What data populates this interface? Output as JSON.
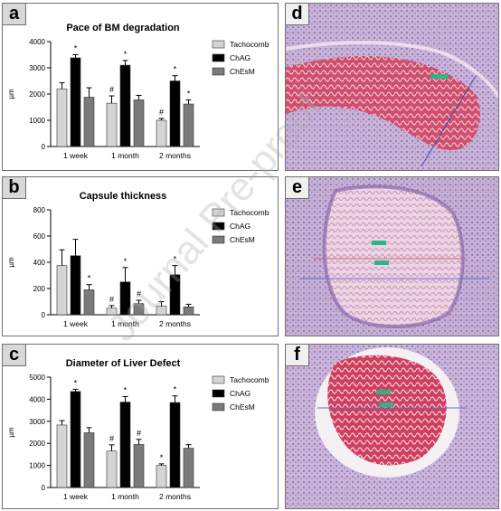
{
  "panels": {
    "a": {
      "label": "a"
    },
    "b": {
      "label": "b"
    },
    "c": {
      "label": "c"
    },
    "d": {
      "label": "d"
    },
    "e": {
      "label": "e"
    },
    "f": {
      "label": "f"
    }
  },
  "watermark": "Journal Pre-proof",
  "colors": {
    "tachocomb": "#d4d4d4",
    "chag": "#000000",
    "chesm": "#7a7a7a"
  },
  "chart_data": [
    {
      "type": "bar",
      "title": "Pace of BM degradation",
      "ylabel": "µm",
      "ylim": [
        0,
        4000
      ],
      "yticks": [
        "0",
        "1000",
        "2000",
        "3000",
        "4000"
      ],
      "categories": [
        "1 week",
        "1 month",
        "2 months"
      ],
      "legend": "right",
      "series": [
        {
          "name": "Tachocomb",
          "values": [
            2200,
            1650,
            1000
          ],
          "errors": [
            230,
            280,
            70
          ],
          "marks": [
            "",
            "#",
            "#"
          ]
        },
        {
          "name": "ChAG",
          "values": [
            3380,
            3100,
            2500
          ],
          "errors": [
            120,
            180,
            200
          ],
          "marks": [
            "*",
            "*",
            "*"
          ]
        },
        {
          "name": "ChEsM",
          "values": [
            1880,
            1780,
            1620
          ],
          "errors": [
            360,
            170,
            160
          ],
          "marks": [
            "",
            "",
            "*"
          ]
        }
      ]
    },
    {
      "type": "bar",
      "title": "Capsule thickness",
      "ylabel": "µm",
      "ylim": [
        0,
        800
      ],
      "yticks": [
        "0",
        "200",
        "400",
        "600",
        "800"
      ],
      "categories": [
        "1 week",
        "1 month",
        "2 months"
      ],
      "legend": "right",
      "series": [
        {
          "name": "Tachocomb",
          "values": [
            375,
            50,
            65
          ],
          "errors": [
            120,
            20,
            35
          ],
          "marks": [
            "",
            "#",
            ""
          ]
        },
        {
          "name": "ChAG",
          "values": [
            450,
            250,
            305
          ],
          "errors": [
            125,
            110,
            70
          ],
          "marks": [
            "",
            "*",
            "*"
          ]
        },
        {
          "name": "ChEsM",
          "values": [
            190,
            85,
            60
          ],
          "errors": [
            40,
            25,
            20
          ],
          "marks": [
            "*",
            "#",
            ""
          ]
        }
      ]
    },
    {
      "type": "bar",
      "title": "Diameter of Liver Defect",
      "ylabel": "µm",
      "ylim": [
        0,
        5000
      ],
      "yticks": [
        "0",
        "1000",
        "2000",
        "3000",
        "4000",
        "5000"
      ],
      "categories": [
        "1 week",
        "1 month",
        "2 months"
      ],
      "legend": "right",
      "series": [
        {
          "name": "Tachocomb",
          "values": [
            2830,
            1650,
            1000
          ],
          "errors": [
            200,
            280,
            70
          ],
          "marks": [
            "",
            "#",
            "*"
          ]
        },
        {
          "name": "ChAG",
          "values": [
            4350,
            3870,
            3850
          ],
          "errors": [
            100,
            250,
            300
          ],
          "marks": [
            "*",
            "*",
            "*"
          ]
        },
        {
          "name": "ChEsM",
          "values": [
            2480,
            1950,
            1780
          ],
          "errors": [
            230,
            230,
            160
          ],
          "marks": [
            "",
            "#",
            ""
          ]
        }
      ]
    }
  ]
}
